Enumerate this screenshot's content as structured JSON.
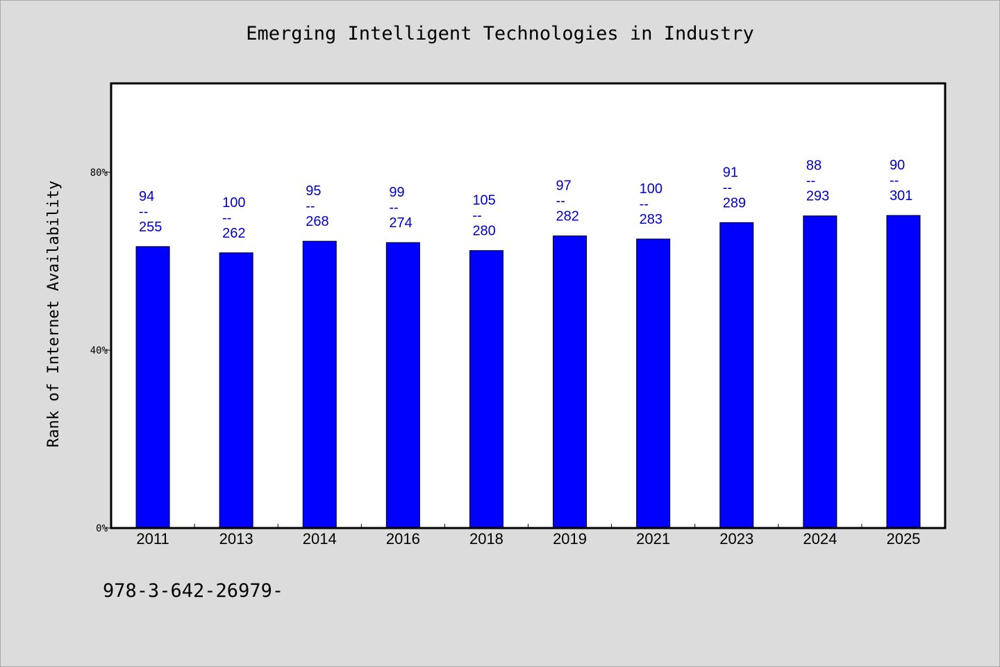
{
  "chart_data": {
    "type": "bar",
    "title": "Emerging Intelligent Technologies in Industry",
    "xlabel": "",
    "ylabel": "Rank of Internet Availability",
    "ylim": [
      0,
      100
    ],
    "yticks": [
      0,
      40,
      80
    ],
    "ytick_labels": [
      "0%",
      "40%",
      "80%"
    ],
    "categories": [
      "2011",
      "2013",
      "2014",
      "2016",
      "2018",
      "2019",
      "2021",
      "2023",
      "2024",
      "2025"
    ],
    "values": [
      63.3,
      61.9,
      64.5,
      64.2,
      62.4,
      65.7,
      65.0,
      68.7,
      70.2,
      70.3
    ],
    "data_labels": [
      [
        "94",
        "--",
        "255"
      ],
      [
        "100",
        "--",
        "262"
      ],
      [
        "95",
        "--",
        "268"
      ],
      [
        "99",
        "--",
        "274"
      ],
      [
        "105",
        "--",
        "280"
      ],
      [
        "97",
        "--",
        "282"
      ],
      [
        "100",
        "--",
        "283"
      ],
      [
        "91",
        "--",
        "289"
      ],
      [
        "88",
        "--",
        "293"
      ],
      [
        "90",
        "--",
        "301"
      ]
    ],
    "bar_color": "#0000ff",
    "label_color": "#0000cd",
    "grid": false,
    "legend": "none"
  },
  "footnote": "978-3-642-26979-"
}
